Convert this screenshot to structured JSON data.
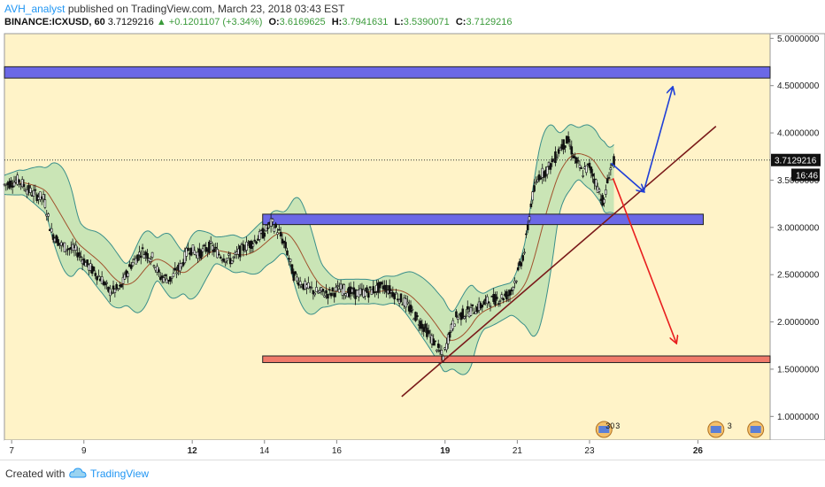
{
  "header": {
    "author": "AVH_analyst",
    "published_text": "published on TradingView.com, March 23, 2018 03:43 EST",
    "symbol": "BINANCE:ICXUSD, 60",
    "last": "3.7129216",
    "change": "+0.1201107 (+3.34%)",
    "o_label": "O:",
    "o_value": "3.6169625",
    "h_label": "H:",
    "h_value": "3.7941631",
    "l_label": "L:",
    "l_value": "3.5390071",
    "c_label": "C:",
    "c_value": "3.7129216"
  },
  "footer": {
    "created_with": "Created with",
    "brand": "TradingView"
  },
  "colors": {
    "background": "#fff3c8",
    "zone_blue": "#6b68e6",
    "zone_red": "#f07a6a",
    "trendline": "#7a1a1a",
    "arrow_blue": "#1f3fd8",
    "arrow_red": "#e81e1e",
    "band_fill": "#b8e0b0",
    "band_line": "#3a8f8a",
    "ma_line": "#a0522d",
    "candle": "#111111"
  },
  "chart_data": {
    "type": "candlestick",
    "ylim": [
      0.75,
      5.05
    ],
    "xlim": [
      6.8,
      28.0
    ],
    "x_ticks": [
      {
        "x": 7,
        "label": "7"
      },
      {
        "x": 9,
        "label": "9"
      },
      {
        "x": 12,
        "label": "12"
      },
      {
        "x": 14,
        "label": "14"
      },
      {
        "x": 16,
        "label": "16"
      },
      {
        "x": 19,
        "label": "19"
      },
      {
        "x": 21,
        "label": "21"
      },
      {
        "x": 23,
        "label": "23"
      },
      {
        "x": 26,
        "label": "26"
      }
    ],
    "bold_x_ticks": [
      "12",
      "19",
      "26"
    ],
    "y_ticks": [
      "1.0000000",
      "1.5000000",
      "2.0000000",
      "2.5000000",
      "3.0000000",
      "3.5000000",
      "4.0000000",
      "4.5000000",
      "5.0000000"
    ],
    "y_tick_values": [
      1.0,
      1.5,
      2.0,
      2.5,
      3.0,
      3.5,
      4.0,
      4.5,
      5.0
    ],
    "last_price_label": "3.7129216",
    "last_price": 3.7129216,
    "countdown_label": "16:46",
    "countdown_price": 3.5,
    "price_path": [
      [
        6.8,
        3.45
      ],
      [
        7.2,
        3.5
      ],
      [
        7.5,
        3.38
      ],
      [
        7.9,
        3.3
      ],
      [
        8.1,
        2.95
      ],
      [
        8.4,
        2.8
      ],
      [
        8.8,
        2.75
      ],
      [
        9.1,
        2.6
      ],
      [
        9.5,
        2.45
      ],
      [
        9.7,
        2.32
      ],
      [
        10.0,
        2.35
      ],
      [
        10.3,
        2.6
      ],
      [
        10.6,
        2.75
      ],
      [
        10.9,
        2.68
      ],
      [
        11.1,
        2.48
      ],
      [
        11.4,
        2.45
      ],
      [
        11.7,
        2.6
      ],
      [
        11.9,
        2.78
      ],
      [
        12.2,
        2.72
      ],
      [
        12.5,
        2.8
      ],
      [
        12.8,
        2.7
      ],
      [
        13.1,
        2.65
      ],
      [
        13.4,
        2.78
      ],
      [
        13.7,
        2.85
      ],
      [
        14.0,
        2.95
      ],
      [
        14.2,
        3.05
      ],
      [
        14.4,
        2.95
      ],
      [
        14.6,
        2.78
      ],
      [
        14.8,
        2.5
      ],
      [
        15.1,
        2.38
      ],
      [
        15.4,
        2.32
      ],
      [
        15.8,
        2.3
      ],
      [
        16.1,
        2.35
      ],
      [
        16.5,
        2.3
      ],
      [
        16.9,
        2.32
      ],
      [
        17.3,
        2.38
      ],
      [
        17.6,
        2.3
      ],
      [
        17.9,
        2.2
      ],
      [
        18.2,
        2.05
      ],
      [
        18.5,
        1.9
      ],
      [
        18.8,
        1.72
      ],
      [
        18.95,
        1.62
      ],
      [
        19.1,
        1.85
      ],
      [
        19.3,
        2.05
      ],
      [
        19.6,
        2.1
      ],
      [
        19.9,
        2.15
      ],
      [
        20.2,
        2.22
      ],
      [
        20.5,
        2.25
      ],
      [
        20.8,
        2.3
      ],
      [
        21.0,
        2.5
      ],
      [
        21.2,
        2.75
      ],
      [
        21.4,
        3.3
      ],
      [
        21.6,
        3.55
      ],
      [
        21.8,
        3.6
      ],
      [
        22.0,
        3.7
      ],
      [
        22.2,
        3.85
      ],
      [
        22.4,
        3.92
      ],
      [
        22.6,
        3.72
      ],
      [
        22.8,
        3.58
      ],
      [
        23.0,
        3.65
      ],
      [
        23.2,
        3.45
      ],
      [
        23.4,
        3.25
      ],
      [
        23.55,
        3.6
      ],
      [
        23.7,
        3.71
      ]
    ],
    "zones": [
      {
        "name": "upper-resistance-zone",
        "x0": 6.8,
        "x1": 28.0,
        "y_low": 4.58,
        "y_high": 4.7,
        "color": "#6b68e6"
      },
      {
        "name": "middle-zone",
        "x0": 13.95,
        "x1": 26.15,
        "y_low": 3.03,
        "y_high": 3.14,
        "color": "#6b68e6"
      },
      {
        "name": "support-zone",
        "x0": 13.95,
        "x1": 28.0,
        "y_low": 1.57,
        "y_high": 1.64,
        "color": "#f07a6a"
      }
    ],
    "trendline": {
      "x0": 17.8,
      "y0": 1.21,
      "x1": 26.5,
      "y1": 4.07
    },
    "arrows": [
      {
        "name": "bullish-path",
        "points": [
          [
            23.6,
            3.68
          ],
          [
            24.5,
            3.38
          ],
          [
            25.3,
            4.48
          ]
        ],
        "color": "#1f3fd8"
      },
      {
        "name": "bearish-path",
        "points": [
          [
            23.65,
            3.52
          ],
          [
            25.4,
            1.78
          ]
        ],
        "color": "#e81e1e"
      }
    ],
    "event_badges": [
      {
        "x": 23.4,
        "label": "30",
        "sub": "3"
      },
      {
        "x": 26.5,
        "label": "",
        "sub": "3"
      },
      {
        "x": 27.6,
        "label": "",
        "sub": ""
      }
    ]
  }
}
